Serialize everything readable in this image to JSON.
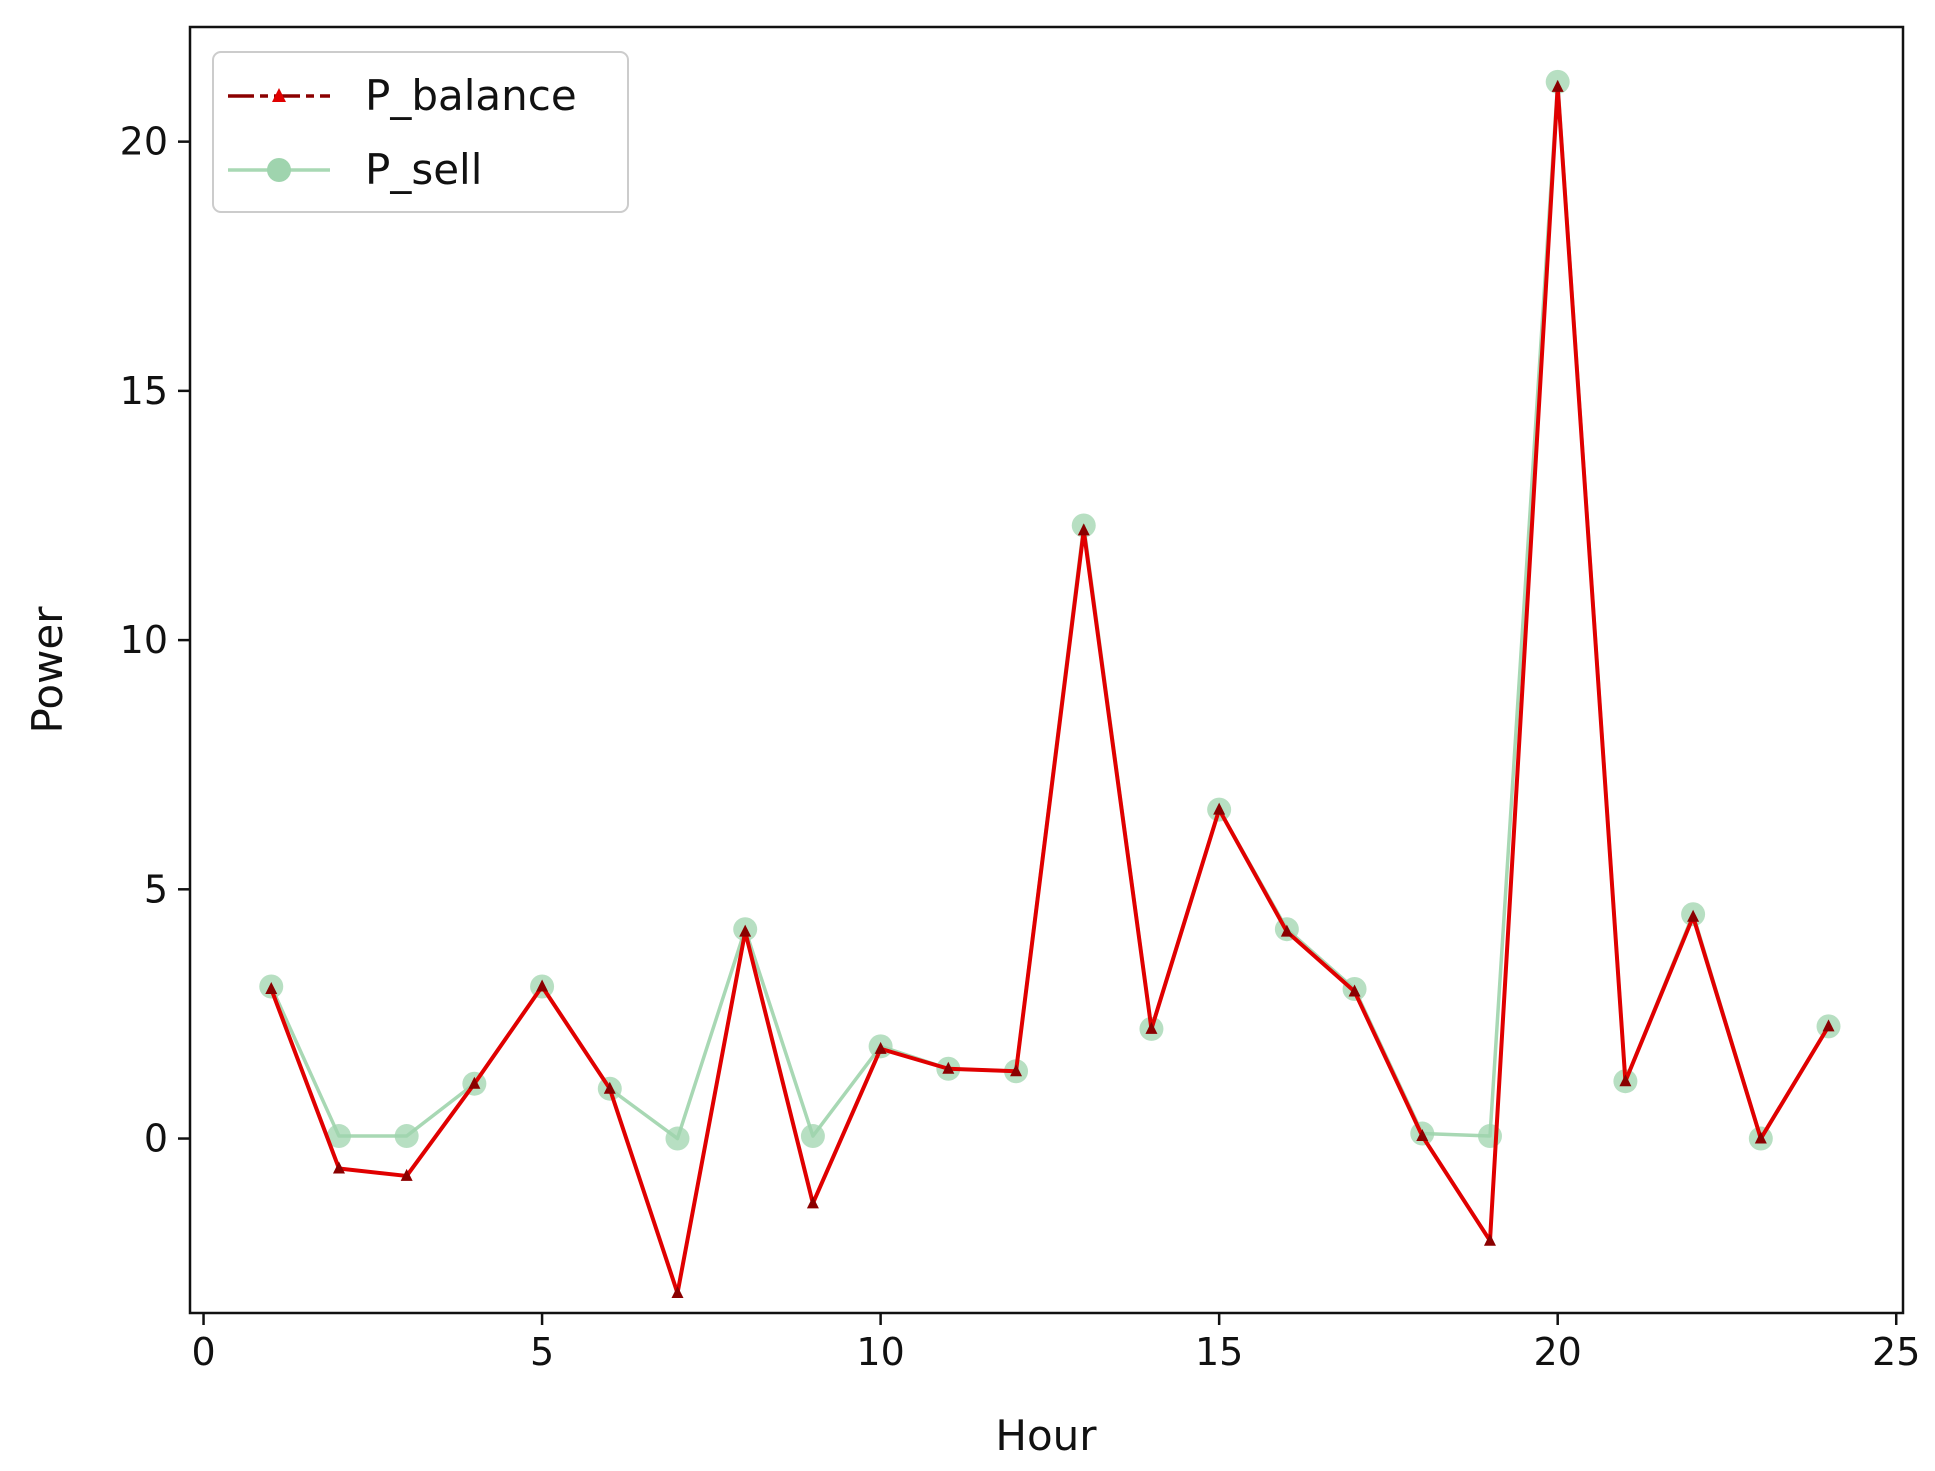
{
  "chart_data": {
    "type": "line",
    "title": "",
    "xlabel": "Hour",
    "ylabel": "Power",
    "xlim": [
      -0.2,
      25.1
    ],
    "ylim": [
      -3.5,
      22.3
    ],
    "xticks": [
      0,
      5,
      10,
      15,
      20,
      25
    ],
    "yticks": [
      0,
      5,
      10,
      15,
      20
    ],
    "grid": false,
    "legend": {
      "position": "top-left"
    },
    "colors": {
      "P_balance_line": "#e00000",
      "P_balance_marker": "#8b0000",
      "P_sell_line": "#a8d8b4",
      "P_sell_marker": "#9fd4ae"
    },
    "x": [
      1,
      2,
      3,
      4,
      5,
      6,
      7,
      8,
      9,
      10,
      11,
      12,
      13,
      14,
      15,
      16,
      17,
      18,
      19,
      20,
      21,
      22,
      23,
      24
    ],
    "series": [
      {
        "name": "P_balance",
        "values": [
          3.0,
          -0.6,
          -0.75,
          1.1,
          3.05,
          1.0,
          -3.1,
          4.15,
          -1.3,
          1.8,
          1.4,
          1.35,
          12.2,
          2.2,
          6.6,
          4.15,
          2.95,
          0.05,
          -2.05,
          21.1,
          1.15,
          4.45,
          0.0,
          2.25
        ]
      },
      {
        "name": "P_sell",
        "values": [
          3.05,
          0.05,
          0.05,
          1.1,
          3.05,
          1.0,
          0.0,
          4.2,
          0.05,
          1.85,
          1.4,
          1.35,
          12.3,
          2.2,
          6.6,
          4.2,
          3.0,
          0.1,
          0.05,
          21.2,
          1.15,
          4.5,
          0.0,
          2.25
        ]
      }
    ]
  }
}
